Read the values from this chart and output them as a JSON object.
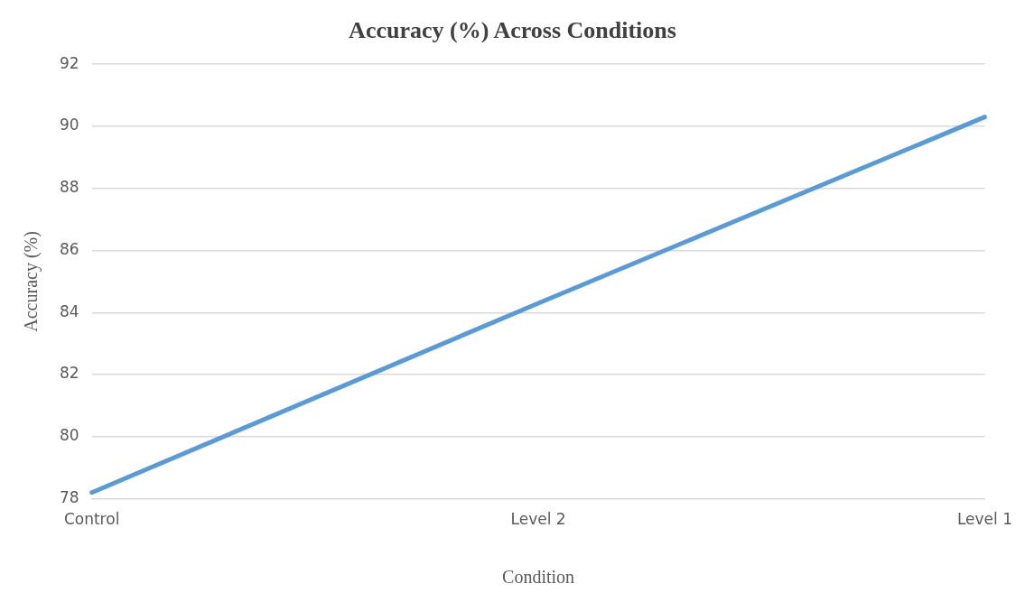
{
  "chart_data": {
    "type": "line",
    "title": "Accuracy (%) Across Conditions",
    "xlabel": "Condition",
    "ylabel": "Accuracy (%)",
    "categories": [
      "Control",
      "Level 2",
      "Level 1"
    ],
    "series": [
      {
        "color": "#5b9bd5",
        "values": [
          78.2,
          84.3,
          90.3
        ]
      }
    ],
    "ylim": [
      78,
      92
    ],
    "yticks": [
      78,
      80,
      82,
      84,
      86,
      88,
      90,
      92
    ],
    "grid": "y",
    "legend": false,
    "marker": "none",
    "line_style": "solid"
  }
}
